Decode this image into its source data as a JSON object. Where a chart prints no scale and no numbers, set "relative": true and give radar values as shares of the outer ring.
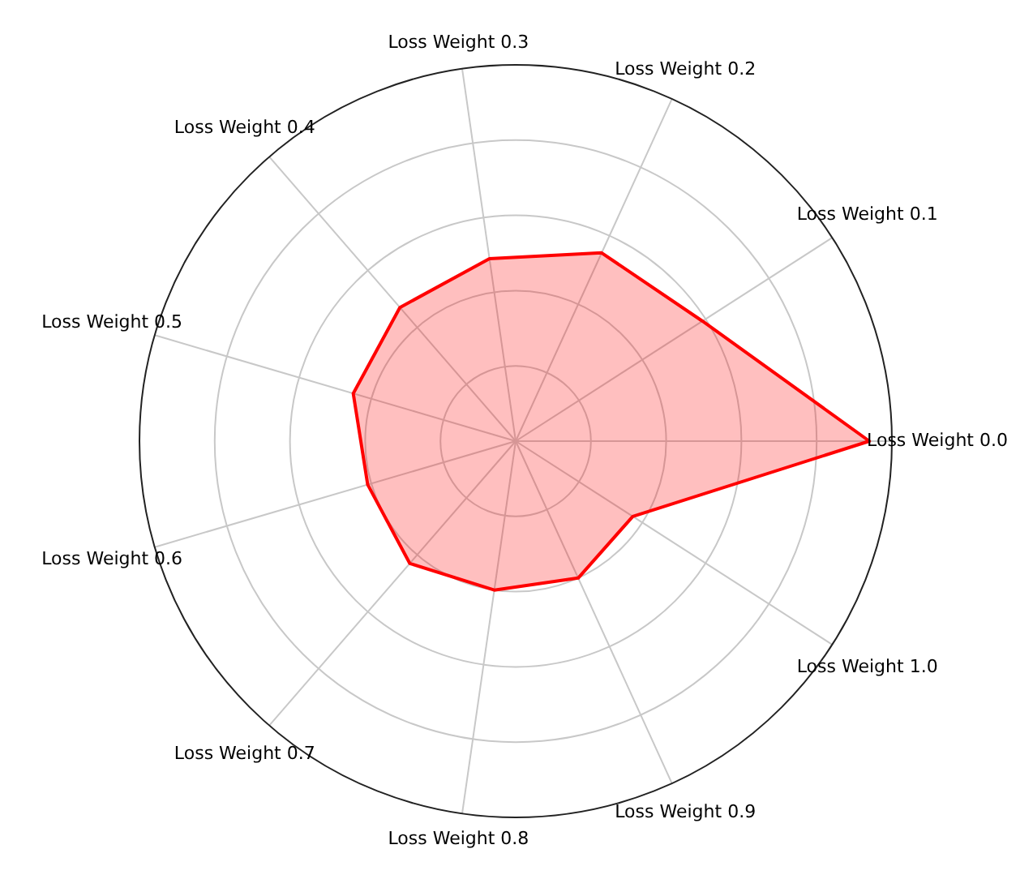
{
  "chart_data": {
    "type": "radar",
    "relative": true,
    "grid": true,
    "marker": "none",
    "categories": [
      "Loss Weight 0.2",
      "Loss Weight 0.1",
      "Loss Weight 0.0",
      "Loss Weight 1.0",
      "Loss Weight 0.9",
      "Loss Weight 0.8",
      "Loss Weight 0.7",
      "Loss Weight 0.6",
      "Loss Weight 0.5",
      "Loss Weight 0.4",
      "Loss Weight 0.3"
    ],
    "series": [
      {
        "color": "#ff0000",
        "values": [
          0.55,
          0.59,
          0.94,
          0.37,
          0.4,
          0.4,
          0.43,
          0.41,
          0.45,
          0.47,
          0.49
        ]
      }
    ]
  }
}
